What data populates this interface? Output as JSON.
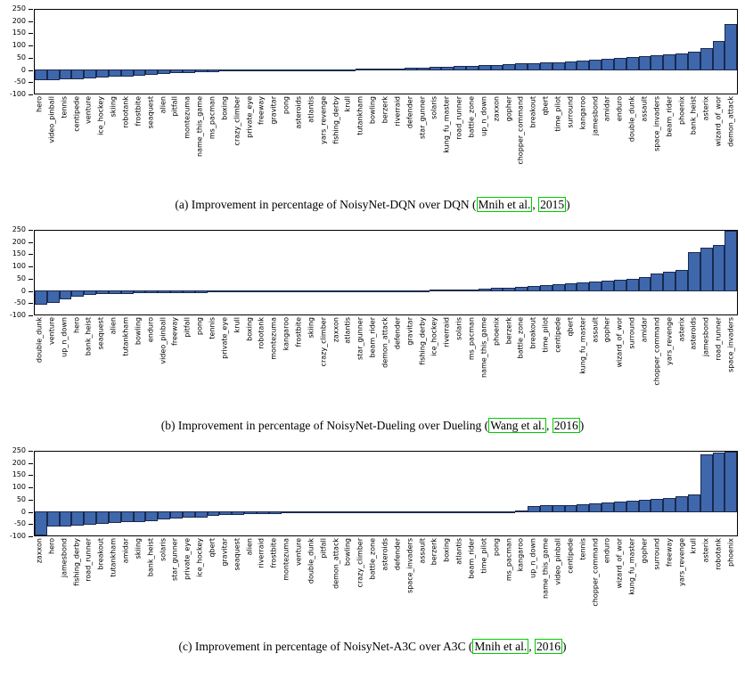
{
  "colors": {
    "bar_fill": "#3f67ac",
    "bar_edge": "#1a2a4f",
    "axis": "#000000",
    "cite_box": "#00cc00"
  },
  "chart_data": [
    {
      "type": "bar",
      "title": "",
      "xlabel": "",
      "ylabel": "",
      "ylim": [
        -100,
        250
      ],
      "yticks": [
        250,
        200,
        150,
        100,
        50,
        0,
        -50,
        -100
      ],
      "grid": false,
      "legend": "none",
      "categories": [
        "hero",
        "video_pinball",
        "tennis",
        "centipede",
        "venture",
        "ice_hockey",
        "skiing",
        "robotank",
        "frostbite",
        "seaquest",
        "alien",
        "pitfall",
        "montezuma",
        "name_this_game",
        "ms_pacman",
        "boxing",
        "crazy_climber",
        "private_eye",
        "freeway",
        "gravitar",
        "pong",
        "asteroids",
        "atlantis",
        "yars_revenge",
        "fishing_derby",
        "krull",
        "tutankham",
        "bowling",
        "berzerk",
        "riverraid",
        "defender",
        "star_gunner",
        "solaris",
        "kung_fu_master",
        "road_runner",
        "battle_zone",
        "up_n_down",
        "zaxxon",
        "gopher",
        "chopper_command",
        "breakout",
        "qbert",
        "time_pilot",
        "surround",
        "kangaroo",
        "jamesbond",
        "amidar",
        "enduro",
        "double_dunk",
        "assault",
        "space_invaders",
        "beam_rider",
        "phoenix",
        "bank_heist",
        "asterix",
        "wizard_of_wor",
        "demon_attack"
      ],
      "values": [
        -42,
        -40,
        -38,
        -36,
        -33,
        -30,
        -27,
        -24,
        -21,
        -18,
        -15,
        -12,
        -9,
        -7,
        -6,
        -5,
        -4,
        -3,
        -3,
        -2,
        -2,
        -1,
        -1,
        0,
        1,
        2,
        3,
        4,
        5,
        6,
        8,
        9,
        11,
        13,
        15,
        17,
        19,
        21,
        23,
        25,
        27,
        30,
        32,
        35,
        38,
        41,
        44,
        48,
        52,
        56,
        60,
        64,
        68,
        75,
        90,
        120,
        190
      ],
      "caption": {
        "prefix": "(a) Improvement in percentage of NoisyNet-DQN over DQN (",
        "cite_author": "Mnih et al.",
        "sep": ", ",
        "cite_year": "2015",
        "suffix": ")"
      }
    },
    {
      "type": "bar",
      "title": "",
      "xlabel": "",
      "ylabel": "",
      "ylim": [
        -100,
        250
      ],
      "yticks": [
        250,
        200,
        150,
        100,
        50,
        0,
        -50,
        -100
      ],
      "grid": false,
      "legend": "none",
      "categories": [
        "double_dunk",
        "venture",
        "up_n_down",
        "hero",
        "bank_heist",
        "seaquest",
        "alien",
        "tutankham",
        "bowling",
        "enduro",
        "video_pinball",
        "freeway",
        "pitfall",
        "pong",
        "tennis",
        "private_eye",
        "krull",
        "boxing",
        "robotank",
        "montezuma",
        "kangaroo",
        "frostbite",
        "skiing",
        "crazy_climber",
        "zaxxon",
        "atlantis",
        "star_gunner",
        "beam_rider",
        "demon_attack",
        "defender",
        "gravitar",
        "fishing_derby",
        "ice_hockey",
        "riverraid",
        "solaris",
        "ms_pacman",
        "name_this_game",
        "phoenix",
        "berzerk",
        "battle_zone",
        "breakout",
        "time_pilot",
        "centipede",
        "qbert",
        "kung_fu_master",
        "assault",
        "gopher",
        "wizard_of_wor",
        "surround",
        "amidar",
        "chopper_command",
        "yars_revenge",
        "asterix",
        "asteroids",
        "jamesbond",
        "road_runner",
        "space_invaders"
      ],
      "values": [
        -55,
        -48,
        -32,
        -22,
        -15,
        -12,
        -10,
        -9,
        -8,
        -8,
        -7,
        -7,
        -6,
        -6,
        -5,
        -5,
        -4,
        -4,
        -4,
        -3,
        -3,
        -3,
        -2,
        -2,
        -2,
        -1,
        -1,
        0,
        0,
        1,
        1,
        2,
        3,
        4,
        5,
        6,
        8,
        10,
        12,
        15,
        18,
        22,
        26,
        30,
        34,
        38,
        42,
        45,
        50,
        56,
        70,
        78,
        85,
        160,
        180,
        190,
        250
      ],
      "caption": {
        "prefix": "(b) Improvement in percentage of NoisyNet-Dueling over Dueling (",
        "cite_author": "Wang et al.",
        "sep": ", ",
        "cite_year": "2016",
        "suffix": ")"
      }
    },
    {
      "type": "bar",
      "title": "",
      "xlabel": "",
      "ylabel": "",
      "ylim": [
        -100,
        250
      ],
      "yticks": [
        250,
        200,
        150,
        100,
        50,
        0,
        -50,
        -100
      ],
      "grid": false,
      "legend": "none",
      "categories": [
        "zaxxon",
        "hero",
        "jamesbond",
        "fishing_derby",
        "road_runner",
        "breakout",
        "tutankham",
        "amidar",
        "skiing",
        "bank_heist",
        "solaris",
        "star_gunner",
        "private_eye",
        "ice_hockey",
        "qbert",
        "gravitar",
        "seaquest",
        "alien",
        "riverraid",
        "frostbite",
        "montezuma",
        "venture",
        "double_dunk",
        "pitfall",
        "demon_attack",
        "bowling",
        "crazy_climber",
        "battle_zone",
        "asteroids",
        "defender",
        "space_invaders",
        "assault",
        "berzerk",
        "boxing",
        "atlantis",
        "beam_rider",
        "time_pilot",
        "pong",
        "ms_pacman",
        "kangaroo",
        "up_n_down",
        "name_this_game",
        "video_pinball",
        "centipede",
        "tennis",
        "chopper_command",
        "enduro",
        "wizard_of_wor",
        "kung_fu_master",
        "gopher",
        "surround",
        "freeway",
        "yars_revenge",
        "krull",
        "asterix",
        "robotank",
        "phoenix"
      ],
      "values": [
        -95,
        -60,
        -58,
        -55,
        -50,
        -48,
        -45,
        -42,
        -40,
        -38,
        -30,
        -25,
        -22,
        -20,
        -15,
        -12,
        -10,
        -8,
        -7,
        -6,
        -5,
        -4,
        -4,
        -3,
        -3,
        -2,
        -2,
        -2,
        -1,
        -1,
        -1,
        0,
        0,
        1,
        1,
        1,
        2,
        2,
        2,
        3,
        22,
        25,
        27,
        28,
        30,
        33,
        36,
        40,
        44,
        48,
        52,
        57,
        62,
        70,
        240,
        248,
        250
      ],
      "caption": {
        "prefix": "(c) Improvement in percentage of NoisyNet-A3C over A3C (",
        "cite_author": "Mnih et al.",
        "sep": ", ",
        "cite_year": "2016",
        "suffix": ")"
      }
    }
  ]
}
